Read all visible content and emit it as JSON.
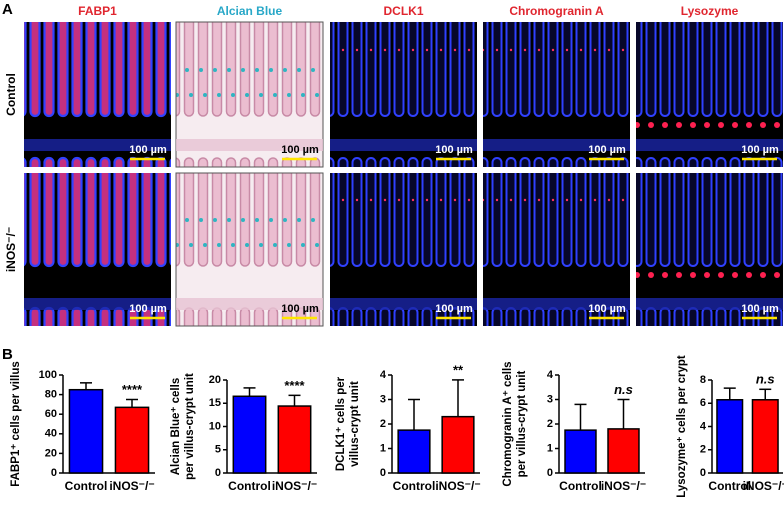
{
  "panel_labels": [
    "A",
    "B"
  ],
  "columns": [
    {
      "label": "FABP1",
      "color": "#e0262f"
    },
    {
      "label": "Alcian Blue",
      "color": "#29a8c8"
    },
    {
      "label": "DCLK1",
      "color": "#e0262f"
    },
    {
      "label": "Chromogranin A",
      "color": "#e0262f"
    },
    {
      "label": "Lysozyme",
      "color": "#e0262f"
    }
  ],
  "rows": [
    "Control",
    "iNOS⁻/⁻"
  ],
  "scale_bar": "100 µm",
  "chart_data": [
    {
      "type": "bar",
      "ylabel": [
        "FABP1⁺ cells per villus"
      ],
      "categories": [
        "Control",
        "iNOS⁻/⁻"
      ],
      "values": [
        85,
        67
      ],
      "errors": [
        7,
        8
      ],
      "colors": [
        "#0000ff",
        "#ff0000"
      ],
      "ylim": [
        0,
        100
      ],
      "yticks": [
        0,
        20,
        40,
        60,
        80,
        100
      ],
      "significance": "****"
    },
    {
      "type": "bar",
      "ylabel": [
        "Alcian Blue⁺ cells",
        "per villus-crypt unit"
      ],
      "categories": [
        "Control",
        "iNOS⁻/⁻"
      ],
      "values": [
        16.5,
        14.4
      ],
      "errors": [
        1.8,
        2.3
      ],
      "colors": [
        "#0000ff",
        "#ff0000"
      ],
      "ylim": [
        0,
        20
      ],
      "yticks": [
        0,
        5,
        10,
        15,
        20
      ],
      "significance": "****"
    },
    {
      "type": "bar",
      "ylabel": [
        "DCLK1⁺ cells per",
        "villus-crypt unit"
      ],
      "categories": [
        "Control",
        "iNOS⁻/⁻"
      ],
      "values": [
        1.75,
        2.3
      ],
      "errors": [
        1.25,
        1.5
      ],
      "colors": [
        "#0000ff",
        "#ff0000"
      ],
      "ylim": [
        0,
        4
      ],
      "yticks": [
        0,
        1,
        2,
        3,
        4
      ],
      "significance": "**"
    },
    {
      "type": "bar",
      "ylabel": [
        "Chromogranin A⁺ cells",
        "per villus-crypt unit"
      ],
      "categories": [
        "Control",
        "iNOS⁻/⁻"
      ],
      "values": [
        1.75,
        1.8
      ],
      "errors": [
        1.05,
        1.2
      ],
      "colors": [
        "#0000ff",
        "#ff0000"
      ],
      "ylim": [
        0,
        4
      ],
      "yticks": [
        0,
        1,
        2,
        3,
        4
      ],
      "significance": "n.s",
      "significance_italic": true
    },
    {
      "type": "bar",
      "ylabel": [
        "Lysozyme⁺ cells per crypt"
      ],
      "categories": [
        "Control",
        "iNOS⁻/⁻"
      ],
      "values": [
        6.3,
        6.3
      ],
      "errors": [
        1.0,
        0.9
      ],
      "colors": [
        "#0000ff",
        "#ff0000"
      ],
      "ylim": [
        0,
        8
      ],
      "yticks": [
        0,
        2,
        4,
        6,
        8
      ],
      "significance": "n.s",
      "significance_italic": true
    }
  ]
}
